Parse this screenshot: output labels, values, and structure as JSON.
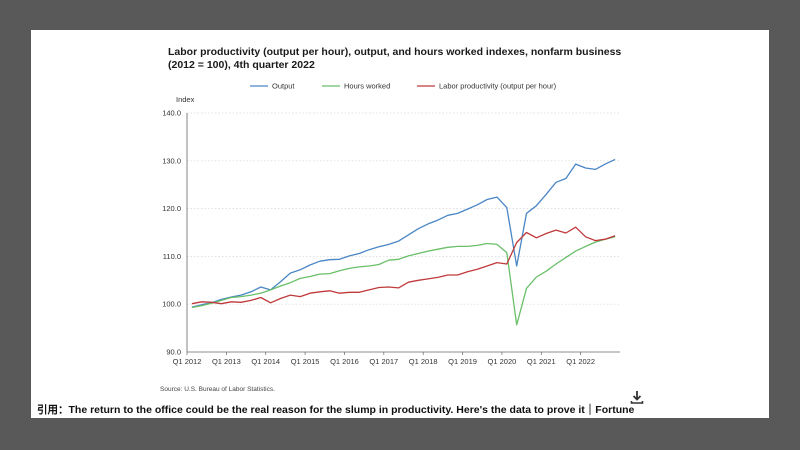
{
  "chart_data": {
    "type": "line",
    "title_line1": "Labor productivity (output per hour), output, and hours worked indexes, nonfarm business",
    "title_line2": "(2012 = 100), 4th quarter 2022",
    "ylabel": "Index",
    "ylim": [
      90,
      140
    ],
    "yticks": [
      "140.0",
      "130.0",
      "120.0",
      "110.0",
      "100.0",
      "90.0"
    ],
    "ytick_values": [
      140,
      130,
      120,
      110,
      100,
      90
    ],
    "xticks": [
      "Q1 2012",
      "Q1 2013",
      "Q1 2014",
      "Q1 2015",
      "Q1 2016",
      "Q1 2017",
      "Q1 2018",
      "Q1 2019",
      "Q1 2020",
      "Q1 2021",
      "Q1 2022"
    ],
    "xtick_index": [
      0,
      4,
      8,
      12,
      16,
      20,
      24,
      28,
      32,
      36,
      40
    ],
    "x_count": 44,
    "grid": "horizontal-dotted",
    "legend": "top",
    "series": [
      {
        "name": "Output",
        "color": "#4a86c5",
        "values": [
          99.4,
          99.9,
          100.3,
          101.0,
          101.5,
          101.9,
          102.6,
          103.6,
          103.0,
          104.7,
          106.5,
          107.2,
          108.2,
          109.0,
          109.3,
          109.4,
          110.1,
          110.6,
          111.4,
          112.0,
          112.5,
          113.2,
          114.5,
          115.8,
          116.8,
          117.6,
          118.6,
          119.0,
          119.9,
          120.8,
          121.9,
          122.4,
          120.2,
          108.0,
          119.0,
          120.6,
          123.0,
          125.5,
          126.3,
          129.3,
          128.5,
          128.2,
          129.3,
          130.3
        ]
      },
      {
        "name": "Hours worked",
        "color": "#6abf69",
        "values": [
          99.3,
          99.7,
          100.2,
          100.8,
          101.4,
          101.6,
          101.9,
          102.3,
          103.0,
          103.8,
          104.5,
          105.4,
          105.8,
          106.3,
          106.4,
          107.0,
          107.5,
          107.8,
          108.0,
          108.3,
          109.2,
          109.4,
          110.1,
          110.6,
          111.1,
          111.5,
          111.9,
          112.1,
          112.1,
          112.3,
          112.7,
          112.5,
          110.8,
          95.7,
          103.3,
          105.7,
          106.9,
          108.4,
          109.8,
          111.1,
          112.1,
          113.0,
          113.6,
          114.1
        ]
      },
      {
        "name": "Labor productivity (output per hour)",
        "color": "#c0393b",
        "values": [
          100.1,
          100.5,
          100.4,
          100.1,
          100.5,
          100.4,
          100.8,
          101.4,
          100.3,
          101.2,
          101.9,
          101.6,
          102.3,
          102.6,
          102.8,
          102.3,
          102.5,
          102.5,
          103.0,
          103.5,
          103.6,
          103.4,
          104.6,
          105.0,
          105.3,
          105.6,
          106.1,
          106.1,
          106.8,
          107.3,
          108.0,
          108.7,
          108.4,
          112.9,
          115.0,
          113.9,
          114.8,
          115.5,
          114.9,
          116.1,
          114.1,
          113.3,
          113.6,
          114.3
        ]
      }
    ]
  },
  "source": "Source: U.S. Bureau of Labor Statistics.",
  "caption": "引用：The return to the office could be the real reason for the slump in productivity. Here's the data to prove it｜Fortune",
  "icons": {
    "download": "download-icon"
  }
}
